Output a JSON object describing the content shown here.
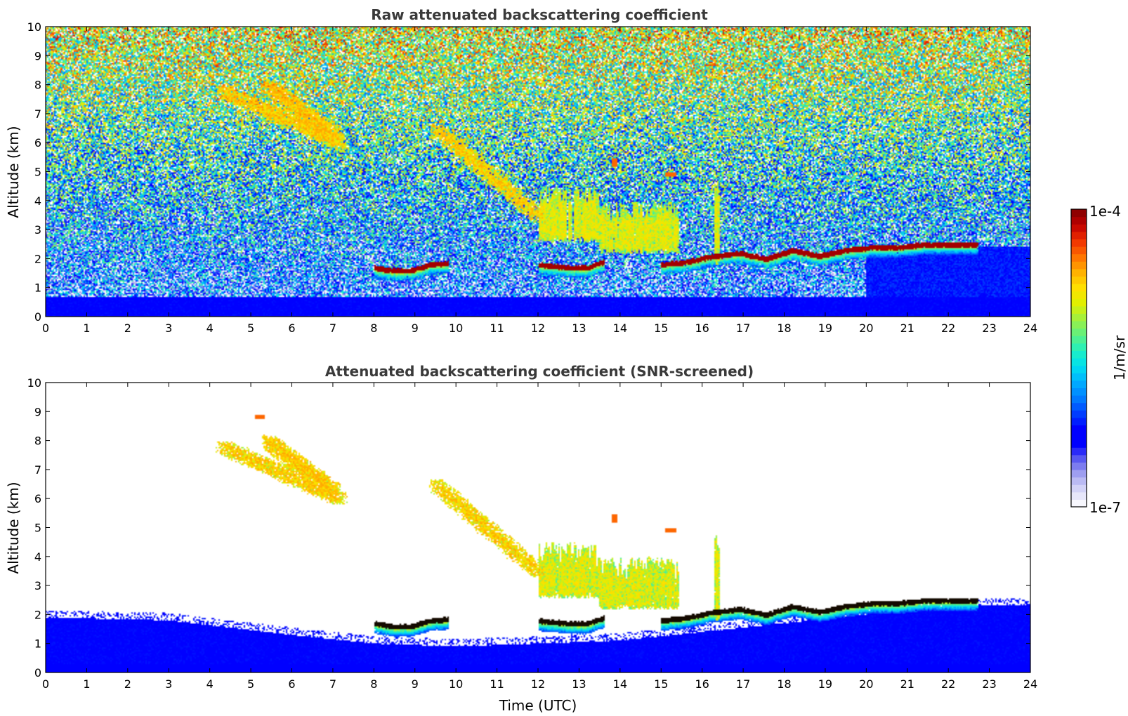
{
  "chart_data": [
    {
      "type": "heatmap",
      "title": "Raw attenuated backscattering coefficient",
      "xlabel": "",
      "ylabel": "Altitude (km)",
      "xlim": [
        0,
        24
      ],
      "ylim": [
        0,
        10
      ],
      "xticks": [
        "0",
        "1",
        "2",
        "3",
        "4",
        "5",
        "6",
        "7",
        "8",
        "9",
        "10",
        "11",
        "12",
        "13",
        "14",
        "15",
        "16",
        "17",
        "18",
        "19",
        "20",
        "21",
        "22",
        "23",
        "24"
      ],
      "yticks": [
        "0",
        "1",
        "2",
        "3",
        "4",
        "5",
        "6",
        "7",
        "8",
        "9",
        "10"
      ],
      "background": "noisy",
      "features": [
        {
          "kind": "boundary_layer",
          "x": [
            0,
            24
          ],
          "top_km": 0.7
        },
        {
          "kind": "aerosol_layer",
          "x": [
            20,
            24
          ],
          "top_km": 2.4
        },
        {
          "kind": "cloud_base",
          "x": [
            8.0,
            9.8
          ],
          "alt_km": [
            1.7,
            1.6,
            1.6,
            1.8,
            1.85
          ]
        },
        {
          "kind": "cloud_base",
          "x": [
            12.0,
            13.6
          ],
          "alt_km": [
            1.8,
            1.75,
            1.7,
            1.7,
            1.9
          ]
        },
        {
          "kind": "cloud_base",
          "x": [
            15.0,
            22.7
          ],
          "alt_km": [
            1.8,
            1.9,
            2.1,
            2.2,
            2.0,
            2.3,
            2.1,
            2.3,
            2.4,
            2.4,
            2.5,
            2.5,
            2.5
          ]
        },
        {
          "kind": "fall_streak",
          "x": [
            4.3,
            7.2
          ],
          "alt_km": [
            7.8,
            6.0
          ]
        },
        {
          "kind": "fall_streak",
          "x": [
            5.4,
            7.0
          ],
          "alt_km": [
            8.0,
            6.3
          ]
        },
        {
          "kind": "fall_streak",
          "x": [
            9.5,
            12.0
          ],
          "alt_km": [
            6.5,
            3.5
          ]
        },
        {
          "kind": "precip",
          "x": [
            12.0,
            13.5
          ],
          "alt_km": [
            2.6,
            4.5
          ]
        },
        {
          "kind": "precip",
          "x": [
            13.5,
            15.4
          ],
          "alt_km": [
            2.2,
            4.0
          ]
        },
        {
          "kind": "precip",
          "x": [
            16.3,
            16.4
          ],
          "alt_km": [
            1.8,
            4.8
          ]
        },
        {
          "kind": "patch",
          "x": [
            15.1,
            15.35
          ],
          "alt_km": [
            4.9,
            5.0
          ]
        },
        {
          "kind": "patch",
          "x": [
            13.8,
            13.9
          ],
          "alt_km": [
            5.2,
            5.5
          ]
        }
      ]
    },
    {
      "type": "heatmap",
      "title": "Attenuated backscattering coefficient (SNR-screened)",
      "xlabel": "Time (UTC)",
      "ylabel": "Altitude (km)",
      "xlim": [
        0,
        24
      ],
      "ylim": [
        0,
        10
      ],
      "xticks": [
        "0",
        "1",
        "2",
        "3",
        "4",
        "5",
        "6",
        "7",
        "8",
        "9",
        "10",
        "11",
        "12",
        "13",
        "14",
        "15",
        "16",
        "17",
        "18",
        "19",
        "20",
        "21",
        "22",
        "23",
        "24"
      ],
      "yticks": [
        "0",
        "1",
        "2",
        "3",
        "4",
        "5",
        "6",
        "7",
        "8",
        "9",
        "10"
      ],
      "background": "screened",
      "features": [
        {
          "kind": "boundary_layer",
          "x": [
            0,
            24
          ],
          "top_km": 1.9,
          "dip": [
            [
              0,
              1.9
            ],
            [
              3,
              1.8
            ],
            [
              6,
              1.3
            ],
            [
              8,
              1.0
            ],
            [
              10,
              0.9
            ],
            [
              12,
              1.0
            ],
            [
              14,
              1.1
            ],
            [
              16,
              1.4
            ],
            [
              18,
              1.7
            ],
            [
              20,
              2.0
            ],
            [
              22,
              2.3
            ],
            [
              24,
              2.3
            ]
          ]
        },
        {
          "kind": "cloud_base",
          "x": [
            8.0,
            9.8
          ],
          "alt_km": [
            1.7,
            1.6,
            1.6,
            1.8,
            1.85
          ]
        },
        {
          "kind": "cloud_base",
          "x": [
            12.0,
            13.6
          ],
          "alt_km": [
            1.8,
            1.75,
            1.7,
            1.7,
            1.9
          ]
        },
        {
          "kind": "cloud_base",
          "x": [
            15.0,
            22.7
          ],
          "alt_km": [
            1.8,
            1.9,
            2.1,
            2.2,
            2.0,
            2.3,
            2.1,
            2.3,
            2.4,
            2.4,
            2.5,
            2.5,
            2.5
          ]
        },
        {
          "kind": "fall_streak",
          "x": [
            4.3,
            7.2
          ],
          "alt_km": [
            7.8,
            6.0
          ]
        },
        {
          "kind": "fall_streak",
          "x": [
            5.4,
            7.0
          ],
          "alt_km": [
            8.0,
            6.3
          ]
        },
        {
          "kind": "fall_streak",
          "x": [
            9.5,
            12.0
          ],
          "alt_km": [
            6.5,
            3.5
          ]
        },
        {
          "kind": "precip",
          "x": [
            12.0,
            13.5
          ],
          "alt_km": [
            2.6,
            4.5
          ]
        },
        {
          "kind": "precip",
          "x": [
            13.5,
            15.4
          ],
          "alt_km": [
            2.2,
            4.0
          ]
        },
        {
          "kind": "precip",
          "x": [
            16.3,
            16.4
          ],
          "alt_km": [
            1.8,
            4.8
          ]
        },
        {
          "kind": "patch",
          "x": [
            15.1,
            15.35
          ],
          "alt_km": [
            4.9,
            5.0
          ]
        },
        {
          "kind": "patch",
          "x": [
            13.8,
            13.9
          ],
          "alt_km": [
            5.2,
            5.5
          ]
        },
        {
          "kind": "patch",
          "x": [
            5.1,
            5.3
          ],
          "alt_km": [
            8.8,
            8.9
          ]
        }
      ]
    }
  ],
  "colorbar": {
    "label": "1/m/sr",
    "max_label": "1e-4",
    "min_label": "1e-7",
    "scale": "log",
    "range": [
      1e-07,
      0.0001
    ],
    "colors": [
      "#ffffff",
      "#dcdcf8",
      "#a8a8f0",
      "#6060f0",
      "#0000ff",
      "#0000ff",
      "#0040ff",
      "#0080ff",
      "#00b0ff",
      "#00e0f0",
      "#20f0c0",
      "#60f080",
      "#a0f040",
      "#e0f000",
      "#ffe000",
      "#ffb000",
      "#ff7000",
      "#f03000",
      "#c00000",
      "#800000"
    ]
  }
}
